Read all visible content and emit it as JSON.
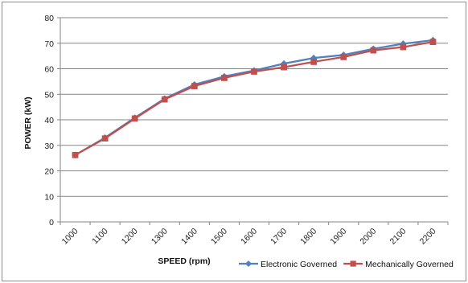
{
  "chart_data": {
    "type": "line",
    "xlabel": "SPEED (rpm)",
    "ylabel": "POWER (kW)",
    "ylim": [
      0,
      80
    ],
    "yticks": [
      0,
      10,
      20,
      30,
      40,
      50,
      60,
      70,
      80
    ],
    "categories": [
      "1000",
      "1100",
      "1200",
      "1300",
      "1400",
      "1500",
      "1600",
      "1700",
      "1800",
      "1900",
      "2000",
      "2100",
      "2200"
    ],
    "grid": "horizontal",
    "legend_position": "bottom-right",
    "series": [
      {
        "name": "Electronic Governed",
        "color": "#4f81bd",
        "marker": "diamond",
        "values": [
          26.2,
          33.0,
          40.8,
          48.3,
          53.8,
          57.0,
          59.3,
          62.0,
          64.2,
          65.4,
          67.8,
          69.8,
          71.2
        ]
      },
      {
        "name": "Mechanically Governed",
        "color": "#c0504d",
        "marker": "square",
        "values": [
          26.2,
          32.7,
          40.5,
          48.0,
          53.2,
          56.4,
          58.9,
          60.6,
          62.7,
          64.6,
          67.2,
          68.5,
          70.5
        ]
      }
    ]
  }
}
